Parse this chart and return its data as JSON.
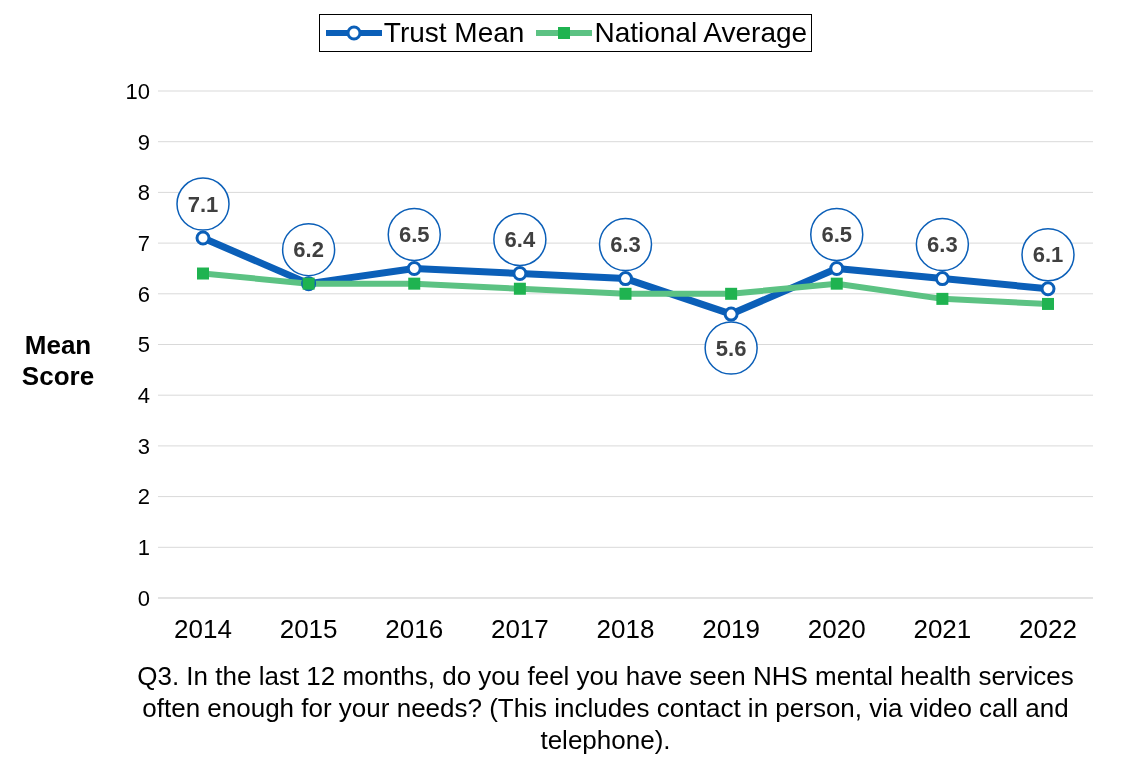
{
  "chart_data": {
    "type": "line",
    "ylabel": "Mean Score",
    "xlabel": "Q3. In the last 12 months, do you feel you have seen NHS mental health services often enough for your needs? (This includes contact in person, via video call and telephone).",
    "categories": [
      "2014",
      "2015",
      "2016",
      "2017",
      "2018",
      "2019",
      "2020",
      "2021",
      "2022"
    ],
    "series": [
      {
        "name": "Trust Mean",
        "color": "#0b5fb8",
        "marker": "circle",
        "values": [
          7.1,
          6.2,
          6.5,
          6.4,
          6.3,
          5.6,
          6.5,
          6.3,
          6.1
        ],
        "value_labels": [
          "7.1",
          "6.2",
          "6.5",
          "6.4",
          "6.3",
          "5.6",
          "6.5",
          "6.3",
          "6.1"
        ]
      },
      {
        "name": "National Average",
        "color": "#5cc283",
        "marker": "square",
        "values": [
          6.4,
          6.2,
          6.2,
          6.1,
          6.0,
          6.0,
          6.2,
          5.9,
          5.8
        ]
      }
    ],
    "ylim": [
      0,
      10
    ],
    "yticks": [
      0,
      1,
      2,
      3,
      4,
      5,
      6,
      7,
      8,
      9,
      10
    ],
    "grid": "y",
    "legend": "top"
  }
}
